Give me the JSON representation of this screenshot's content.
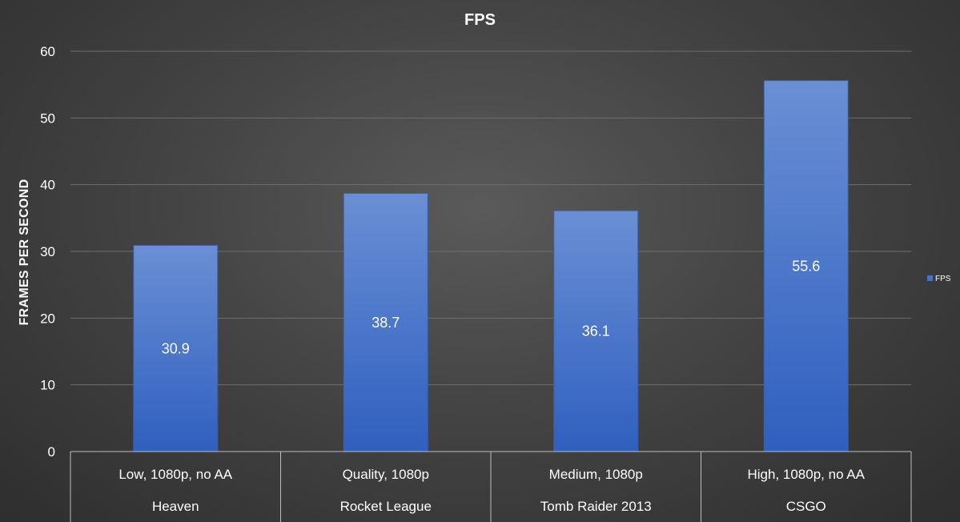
{
  "chart_data": {
    "type": "bar",
    "title": "FPS",
    "ylabel": "FRAMES PER SECOND",
    "xlabel": "",
    "ylim": [
      0,
      60
    ],
    "yticks": [
      0,
      10,
      20,
      30,
      40,
      50,
      60
    ],
    "grid": true,
    "legend_position": "right",
    "categories": [
      {
        "setting": "Low, 1080p, no AA",
        "game": "Heaven"
      },
      {
        "setting": "Quality, 1080p",
        "game": "Rocket League"
      },
      {
        "setting": "Medium, 1080p",
        "game": "Tomb Raider 2013"
      },
      {
        "setting": "High, 1080p, no AA",
        "game": "CSGO"
      }
    ],
    "series": [
      {
        "name": "FPS",
        "values": [
          30.9,
          38.7,
          36.1,
          55.6
        ],
        "color": "#4472c4"
      }
    ]
  }
}
